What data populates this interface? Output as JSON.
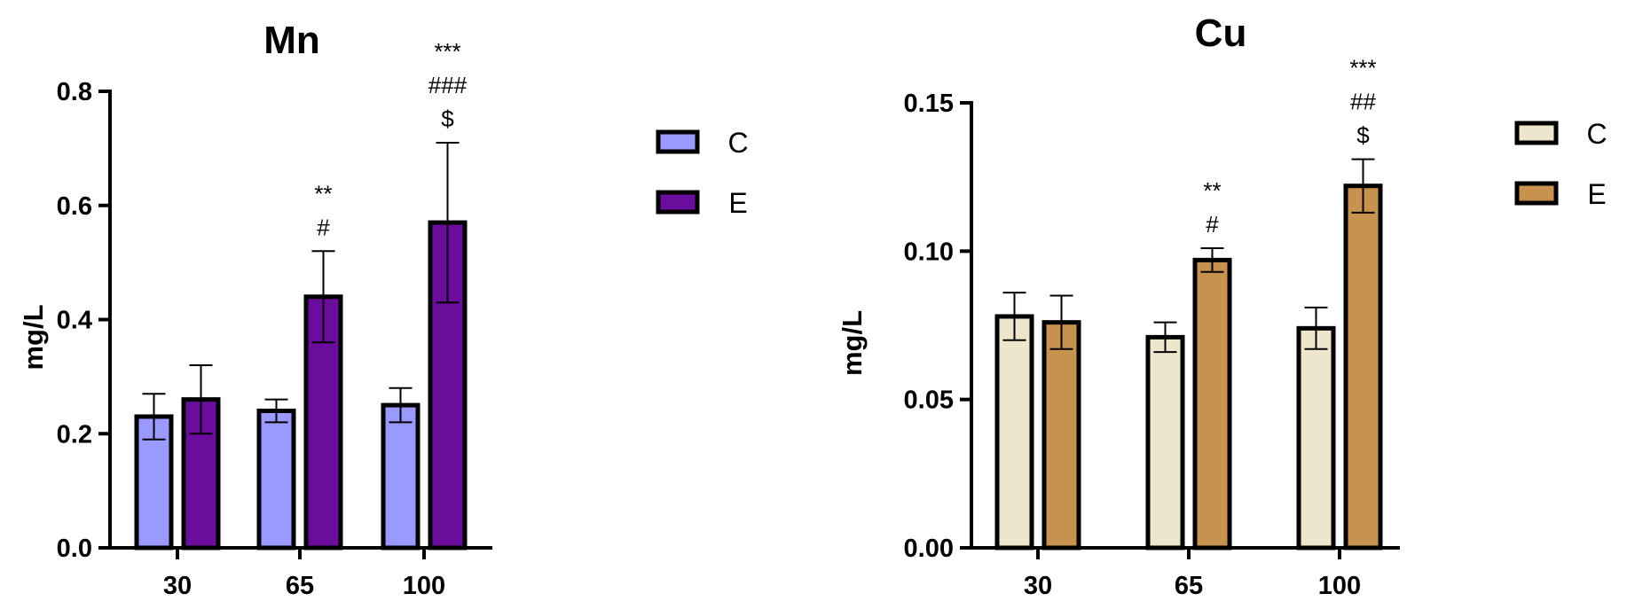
{
  "chart_data": [
    {
      "type": "bar",
      "title": "Mn",
      "xlabel": "",
      "ylabel": "mg/L",
      "categories": [
        "30",
        "65",
        "100"
      ],
      "ylim": [
        0,
        0.8
      ],
      "yticks": [
        "0.0",
        "0.2",
        "0.4",
        "0.6",
        "0.8"
      ],
      "ytick_values": [
        0,
        0.2,
        0.4,
        0.6,
        0.8
      ],
      "series": [
        {
          "name": "C",
          "color": "#9999ff",
          "values": [
            0.23,
            0.24,
            0.25
          ],
          "errors": [
            0.04,
            0.02,
            0.03
          ]
        },
        {
          "name": "E",
          "color": "#6a0d9c",
          "values": [
            0.26,
            0.44,
            0.57
          ],
          "errors": [
            0.06,
            0.08,
            0.14
          ]
        }
      ],
      "annotations": [
        {
          "series": "E",
          "category": "65",
          "lines": [
            "**",
            "#"
          ]
        },
        {
          "series": "E",
          "category": "100",
          "lines": [
            "***",
            "###",
            "$"
          ]
        }
      ]
    },
    {
      "type": "bar",
      "title": "Cu",
      "xlabel": "",
      "ylabel": "mg/L",
      "categories": [
        "30",
        "65",
        "100"
      ],
      "ylim": [
        0,
        0.15
      ],
      "yticks": [
        "0.00",
        "0.05",
        "0.10",
        "0.15"
      ],
      "ytick_values": [
        0,
        0.05,
        0.1,
        0.15
      ],
      "series": [
        {
          "name": "C",
          "color": "#ede6cc",
          "values": [
            0.078,
            0.071,
            0.074
          ],
          "errors": [
            0.008,
            0.005,
            0.007
          ]
        },
        {
          "name": "E",
          "color": "#c6924e",
          "values": [
            0.076,
            0.097,
            0.122
          ],
          "errors": [
            0.009,
            0.004,
            0.009
          ]
        }
      ],
      "annotations": [
        {
          "series": "E",
          "category": "65",
          "lines": [
            "**",
            "#"
          ]
        },
        {
          "series": "E",
          "category": "100",
          "lines": [
            "***",
            "##",
            "$"
          ]
        }
      ]
    }
  ]
}
